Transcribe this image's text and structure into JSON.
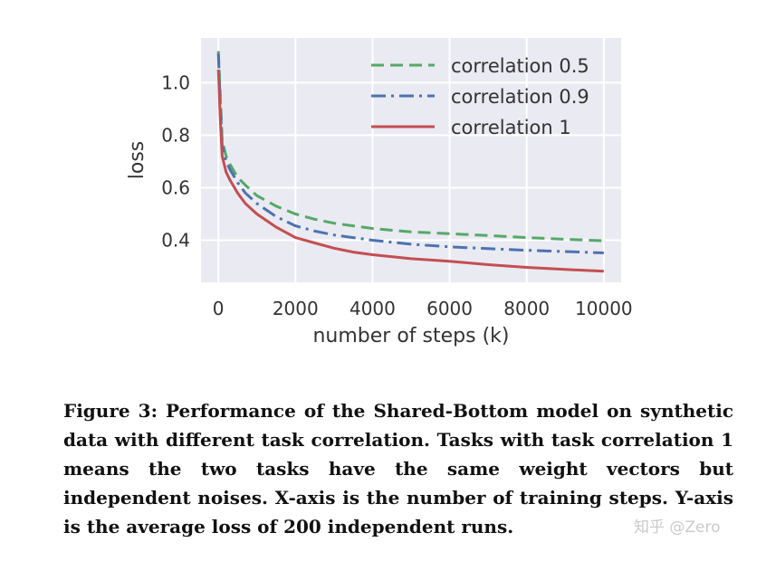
{
  "chart_data": {
    "type": "line",
    "xlabel": "number of steps (k)",
    "ylabel": "loss",
    "xlim": [
      -450,
      10450
    ],
    "ylim": [
      0.24,
      1.17
    ],
    "xticks": [
      0,
      2000,
      4000,
      6000,
      8000,
      10000
    ],
    "xtick_labels": [
      "0",
      "2000",
      "4000",
      "6000",
      "8000",
      "10000"
    ],
    "yticks": [
      0.4,
      0.6,
      0.8,
      1.0
    ],
    "ytick_labels": [
      "0.4",
      "0.6",
      "0.8",
      "1.0"
    ],
    "grid": true,
    "legend_position": "top-right",
    "series": [
      {
        "name": "correlation 0.5",
        "color": "#55a868",
        "style": "dashed",
        "x": [
          0,
          50,
          100,
          200,
          300,
          500,
          700,
          1000,
          1500,
          2000,
          2500,
          3000,
          3500,
          4000,
          5000,
          6000,
          7000,
          8000,
          9000,
          10000
        ],
        "y": [
          1.12,
          0.95,
          0.78,
          0.72,
          0.69,
          0.64,
          0.61,
          0.57,
          0.53,
          0.5,
          0.48,
          0.465,
          0.455,
          0.445,
          0.432,
          0.425,
          0.418,
          0.41,
          0.404,
          0.398
        ]
      },
      {
        "name": "correlation 0.9",
        "color": "#4c72b0",
        "style": "dashdot",
        "x": [
          0,
          50,
          100,
          200,
          300,
          500,
          700,
          1000,
          1500,
          2000,
          2500,
          3000,
          3500,
          4000,
          5000,
          6000,
          7000,
          8000,
          9000,
          10000
        ],
        "y": [
          1.11,
          0.92,
          0.76,
          0.7,
          0.67,
          0.62,
          0.58,
          0.54,
          0.49,
          0.455,
          0.435,
          0.42,
          0.41,
          0.4,
          0.385,
          0.375,
          0.368,
          0.362,
          0.357,
          0.352
        ]
      },
      {
        "name": "correlation 1",
        "color": "#c44e52",
        "style": "solid",
        "x": [
          0,
          50,
          100,
          200,
          300,
          500,
          700,
          1000,
          1500,
          2000,
          2500,
          3000,
          3500,
          4000,
          5000,
          6000,
          7000,
          8000,
          9000,
          10000
        ],
        "y": [
          1.05,
          0.86,
          0.72,
          0.66,
          0.63,
          0.58,
          0.54,
          0.5,
          0.45,
          0.41,
          0.39,
          0.37,
          0.355,
          0.345,
          0.33,
          0.32,
          0.307,
          0.297,
          0.289,
          0.282
        ]
      }
    ]
  },
  "caption": "Figure 3: Performance of the Shared-Bottom model on synthetic data with different task correlation. Tasks with task correlation 1 means the two tasks have the same weight vectors but independent noises. X-axis is the number of training steps. Y-axis is the average loss of 200 independent runs.",
  "watermark": "知乎 @Zero"
}
